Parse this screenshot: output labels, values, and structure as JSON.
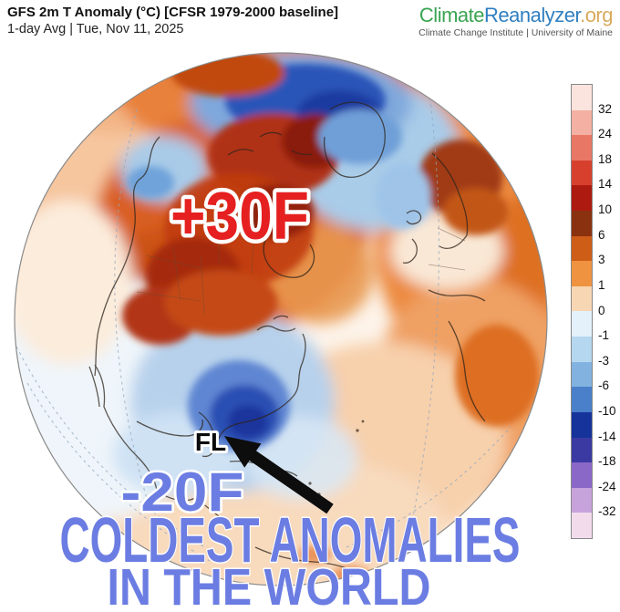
{
  "header": {
    "title": "GFS 2m T Anomaly (°C) [CFSR 1979-2000 baseline]",
    "subtitle": "1-day Avg | Tue, Nov 11, 2025"
  },
  "logo": {
    "part1": "Climate",
    "part2": "Reanalyzer",
    "part3": ".org",
    "tagline": "Climate Change Institute | University of Maine",
    "colors": {
      "part1": "#3aa452",
      "part2": "#2f7fc0",
      "part3": "#d9a95c"
    }
  },
  "annotations": {
    "warm_label": "+30F",
    "fl_label": "FL",
    "cold_label": "-20F",
    "headline_line1": "COLDEST ANOMALIES",
    "headline_line2": "IN THE WORLD",
    "colors": {
      "warm": "#e62020",
      "cold": "#6b7de2"
    }
  },
  "colorbar": {
    "units": "°C",
    "labels": [
      "32",
      "24",
      "18",
      "14",
      "10",
      "6",
      "3",
      "1",
      "0",
      "-1",
      "-3",
      "-6",
      "-10",
      "-14",
      "-18",
      "-24",
      "-32"
    ],
    "segments": [
      "#fbe4de",
      "#f4b0a2",
      "#e97765",
      "#d8402e",
      "#ad1a10",
      "#8a3110",
      "#cd5d17",
      "#ef9341",
      "#f7d6b3",
      "#e4f0fa",
      "#b5d7ef",
      "#82b3e0",
      "#4a7fc9",
      "#16339b",
      "#3b3aa2",
      "#8a68c8",
      "#c7a3dc",
      "#f2dcec"
    ]
  }
}
